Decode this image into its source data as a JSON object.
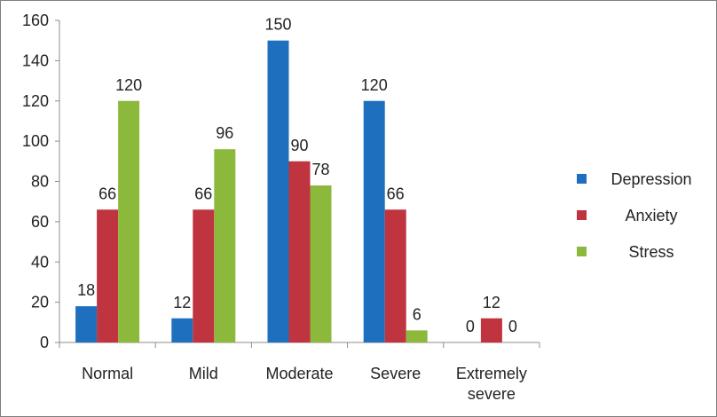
{
  "chart_data": {
    "type": "bar",
    "categories": [
      "Normal",
      "Mild",
      "Moderate",
      "Severe",
      "Extremely severe"
    ],
    "category_lines": [
      [
        "Normal"
      ],
      [
        "Mild"
      ],
      [
        "Moderate"
      ],
      [
        "Severe"
      ],
      [
        "Extremely",
        "severe"
      ]
    ],
    "series": [
      {
        "name": "Depression",
        "color": "#1f6fbf",
        "values": [
          18,
          12,
          150,
          120,
          0
        ]
      },
      {
        "name": "Anxiety",
        "color": "#c0343f",
        "values": [
          66,
          66,
          90,
          66,
          12
        ]
      },
      {
        "name": "Stress",
        "color": "#8cb83c",
        "values": [
          120,
          96,
          78,
          6,
          0
        ]
      }
    ],
    "ylim": [
      0,
      160
    ],
    "yticks": [
      0,
      20,
      40,
      60,
      80,
      100,
      120,
      140,
      160
    ],
    "grid": false,
    "legend_position": "right"
  }
}
